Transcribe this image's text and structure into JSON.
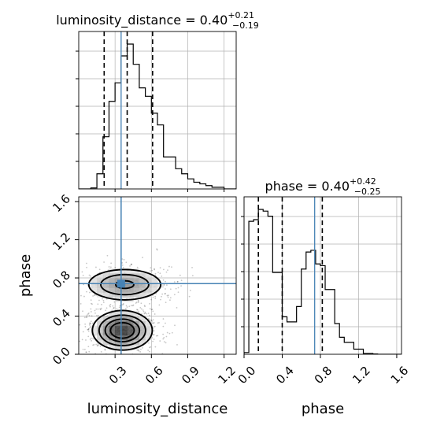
{
  "chart_data": {
    "type": "corner",
    "parameters": [
      "luminosity_distance",
      "phase"
    ],
    "xlabels": {
      "luminosity_distance": "luminosity_distance",
      "phase": "phase"
    },
    "ylabels": {
      "phase": "phase"
    },
    "titles": {
      "luminosity_distance": {
        "prefix": "luminosity_distance = 0.40",
        "plus": "+0.21",
        "minus": "−0.19"
      },
      "phase": {
        "prefix": "phase = 0.40",
        "plus": "+0.42",
        "minus": "−0.25"
      }
    },
    "ranges": {
      "luminosity_distance": [
        0.0,
        1.3
      ],
      "phase": [
        0.0,
        1.65
      ]
    },
    "ticks": {
      "luminosity_distance": {
        "values": [
          0.3,
          0.6,
          0.9,
          1.2
        ],
        "labels": [
          "0.3",
          "0.6",
          "0.9",
          "1.2"
        ]
      },
      "phase": {
        "values": [
          0.0,
          0.4,
          0.8,
          1.2,
          1.6
        ],
        "labels": [
          "0.0",
          "0.4",
          "0.8",
          "1.2",
          "1.6"
        ]
      }
    },
    "truths": {
      "luminosity_distance": 0.35,
      "phase": 0.74
    },
    "quantiles": {
      "luminosity_distance": [
        0.21,
        0.4,
        0.61
      ],
      "phase": [
        0.15,
        0.4,
        0.82
      ]
    },
    "histograms": {
      "luminosity_distance": {
        "edges": [
          0.0,
          0.05,
          0.1,
          0.15,
          0.2,
          0.25,
          0.3,
          0.35,
          0.4,
          0.45,
          0.5,
          0.55,
          0.6,
          0.65,
          0.7,
          0.75,
          0.8,
          0.85,
          0.9,
          0.95,
          1.0,
          1.05,
          1.1,
          1.15,
          1.2,
          1.25,
          1.3
        ],
        "counts": [
          0,
          0,
          0.6,
          9,
          31,
          52,
          63,
          79,
          86,
          74,
          60,
          55,
          45,
          38,
          19,
          19,
          12,
          9,
          6,
          4,
          3,
          2,
          1,
          1,
          0,
          0
        ]
      },
      "phase": {
        "edges": [
          0.0,
          0.05,
          0.1,
          0.15,
          0.2,
          0.25,
          0.3,
          0.35,
          0.4,
          0.45,
          0.5,
          0.55,
          0.6,
          0.65,
          0.7,
          0.75,
          0.8,
          0.85,
          0.9,
          0.95,
          1.0,
          1.05,
          1.1,
          1.15,
          1.2,
          1.25,
          1.3,
          1.35,
          1.4,
          1.45,
          1.5,
          1.55,
          1.6,
          1.65
        ],
        "counts": [
          1,
          78,
          79,
          85,
          84,
          81,
          48,
          48,
          22,
          19,
          19,
          28,
          50,
          60,
          61,
          53,
          52,
          38,
          38,
          18,
          10,
          7,
          7,
          3,
          3,
          0.5,
          0.5,
          0.2,
          0,
          0,
          0,
          0,
          0
        ]
      }
    },
    "density_2d": {
      "x": "luminosity_distance",
      "y": "phase",
      "modes": [
        {
          "x": 0.36,
          "y": 0.25,
          "sx": 0.12,
          "sy": 0.1,
          "weight": 1.0
        },
        {
          "x": 0.38,
          "y": 0.73,
          "sx": 0.17,
          "sy": 0.09,
          "weight": 0.55
        }
      ]
    },
    "colors": {
      "truth": "#4682b4",
      "hist": "#000000",
      "quantile": "#000000",
      "grid": "#b0b0b0"
    }
  }
}
